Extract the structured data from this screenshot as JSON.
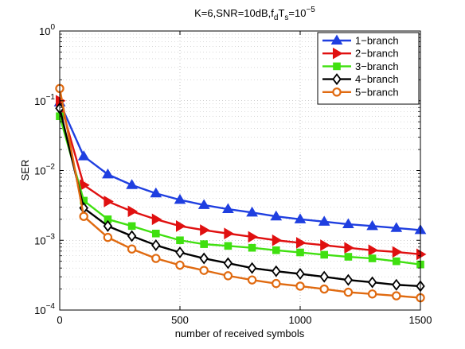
{
  "chart_data": {
    "type": "line",
    "title": {
      "prefix": "K=6,SNR=10dB,f",
      "sub1": "d",
      "mid": "T",
      "sub2": "s",
      "eq": "=10",
      "sup": "−5"
    },
    "xlabel": "number of received symbols",
    "ylabel": "SER",
    "xlim": [
      0,
      1500
    ],
    "ylim": [
      0.0001,
      1
    ],
    "yscale": "log",
    "grid": true,
    "legend_position": "top-right",
    "x_ticks": [
      "0",
      "500",
      "1000",
      "1500"
    ],
    "y_ticks": [
      {
        "base": "10",
        "exp": "0"
      },
      {
        "base": "10",
        "exp": "-1"
      },
      {
        "base": "10",
        "exp": "-2"
      },
      {
        "base": "10",
        "exp": "-3"
      },
      {
        "base": "10",
        "exp": "-4"
      }
    ],
    "x": [
      0,
      100,
      200,
      300,
      400,
      500,
      600,
      700,
      800,
      900,
      1000,
      1100,
      1200,
      1300,
      1400,
      1500
    ],
    "series": [
      {
        "name": "1−branch",
        "color": "#1f3fe0",
        "marker": "triangle-up",
        "values": [
          0.095,
          0.016,
          0.0088,
          0.0062,
          0.0047,
          0.0038,
          0.0032,
          0.0028,
          0.0025,
          0.0022,
          0.002,
          0.00185,
          0.0017,
          0.0016,
          0.0015,
          0.0014
        ]
      },
      {
        "name": "2−branch",
        "color": "#e01010",
        "marker": "triangle-right",
        "values": [
          0.1,
          0.0062,
          0.0036,
          0.0026,
          0.002,
          0.0016,
          0.0014,
          0.00125,
          0.00112,
          0.001,
          0.00092,
          0.00085,
          0.00078,
          0.00072,
          0.00068,
          0.00063
        ]
      },
      {
        "name": "3−branch",
        "color": "#40e010",
        "marker": "square",
        "values": [
          0.06,
          0.0037,
          0.002,
          0.0016,
          0.00125,
          0.001,
          0.00088,
          0.00083,
          0.00078,
          0.00072,
          0.00067,
          0.00062,
          0.00058,
          0.00055,
          0.0005,
          0.00045
        ]
      },
      {
        "name": "4−branch",
        "color": "#000000",
        "marker": "diamond",
        "values": [
          0.078,
          0.0029,
          0.0016,
          0.00115,
          0.00085,
          0.00067,
          0.00055,
          0.00047,
          0.0004,
          0.00036,
          0.00033,
          0.0003,
          0.00027,
          0.00025,
          0.00023,
          0.00022
        ]
      },
      {
        "name": "5−branch",
        "color": "#e06a10",
        "marker": "circle",
        "values": [
          0.15,
          0.0022,
          0.0011,
          0.00075,
          0.00055,
          0.00044,
          0.00037,
          0.00031,
          0.00027,
          0.00024,
          0.00022,
          0.0002,
          0.00018,
          0.00017,
          0.00016,
          0.00015
        ]
      }
    ]
  }
}
